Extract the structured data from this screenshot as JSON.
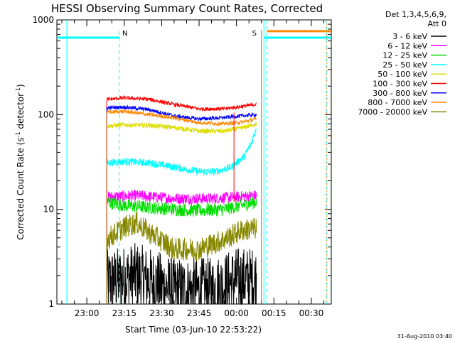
{
  "chart_data": {
    "type": "line",
    "title": "HESSI Observing Summary Count Rates, Corrected",
    "xlabel": "Start Time (03-Jun-10 22:53:22)",
    "ylabel_main": "Corrected Count Rate (s",
    "ylabel_sup1": "-1",
    "ylabel_mid": " detector",
    "ylabel_sup2": "-1",
    "ylabel_end": ")",
    "yscale": "log",
    "ylim": [
      1,
      1000
    ],
    "xlim_minutes": [
      -12,
      98
    ],
    "x_ticks": [
      {
        "label": "23:00",
        "min": 0
      },
      {
        "label": "23:15",
        "min": 15
      },
      {
        "label": "23:30",
        "min": 30
      },
      {
        "label": "23:45",
        "min": 45
      },
      {
        "label": "00:00",
        "min": 60
      },
      {
        "label": "00:15",
        "min": 75
      },
      {
        "label": "00:30",
        "min": 90
      }
    ],
    "y_ticks": [
      {
        "label": "1",
        "value": 1
      },
      {
        "label": "10",
        "value": 10
      },
      {
        "label": "100",
        "value": 100
      },
      {
        "label": "1000",
        "value": 1000
      }
    ],
    "legend_header": [
      "Det 1,3,4,5,6,9,",
      "Att 0"
    ],
    "legend_position": "right, outside plot",
    "series": [
      {
        "name": "3 - 6 keV",
        "color": "#000000",
        "t": [
          8,
          20,
          35,
          50,
          60,
          68
        ],
        "values": [
          1.7,
          2.0,
          1.4,
          1.4,
          1.8,
          1.8
        ]
      },
      {
        "name": "6 - 12 keV",
        "color": "#ff00ff",
        "t": [
          8,
          20,
          35,
          50,
          60,
          68
        ],
        "values": [
          13.5,
          14,
          13,
          13,
          13.5,
          14
        ]
      },
      {
        "name": "12 - 25 keV",
        "color": "#00dd00",
        "t": [
          8,
          15,
          25,
          35,
          45,
          55,
          62,
          68
        ],
        "values": [
          12,
          11,
          10.5,
          10,
          9.7,
          10,
          11,
          12
        ]
      },
      {
        "name": "25 - 50 keV",
        "color": "#00ffff",
        "t": [
          8,
          15,
          25,
          35,
          45,
          52,
          58,
          63,
          66,
          68
        ],
        "values": [
          31,
          32,
          31,
          28,
          25,
          25,
          28,
          36,
          50,
          75
        ]
      },
      {
        "name": "50 - 100 keV",
        "color": "#dddd00",
        "t": [
          8,
          15,
          25,
          35,
          45,
          55,
          62,
          68
        ],
        "values": [
          76,
          78,
          77,
          73,
          67,
          67,
          72,
          80
        ]
      },
      {
        "name": "100 - 300 keV",
        "color": "#ff0000",
        "t": [
          8,
          15,
          25,
          35,
          45,
          55,
          62,
          68
        ],
        "values": [
          145,
          150,
          145,
          128,
          115,
          115,
          122,
          128
        ]
      },
      {
        "name": "300 - 800 keV",
        "color": "#0000ff",
        "t": [
          8,
          15,
          25,
          35,
          45,
          55,
          62,
          68
        ],
        "values": [
          118,
          120,
          113,
          97,
          90,
          93,
          97,
          100
        ]
      },
      {
        "name": "800 - 7000 keV",
        "color": "#ff8800",
        "t": [
          8,
          15,
          25,
          35,
          45,
          55,
          62,
          68
        ],
        "values": [
          106,
          108,
          100,
          92,
          82,
          80,
          83,
          90
        ]
      },
      {
        "name": "7000 - 20000 keV",
        "color": "#888800",
        "t": [
          8,
          15,
          20,
          25,
          35,
          45,
          55,
          62,
          68
        ],
        "values": [
          4.8,
          6.5,
          7.2,
          5.7,
          3.8,
          3.8,
          4.8,
          6.0,
          6.3
        ]
      }
    ],
    "markers": [
      {
        "label": "N",
        "min": 13,
        "color": "#00ccff"
      },
      {
        "label": "S",
        "min": 70,
        "color": "#cc6600"
      }
    ],
    "footer": "31-Aug-2010 03:40"
  }
}
